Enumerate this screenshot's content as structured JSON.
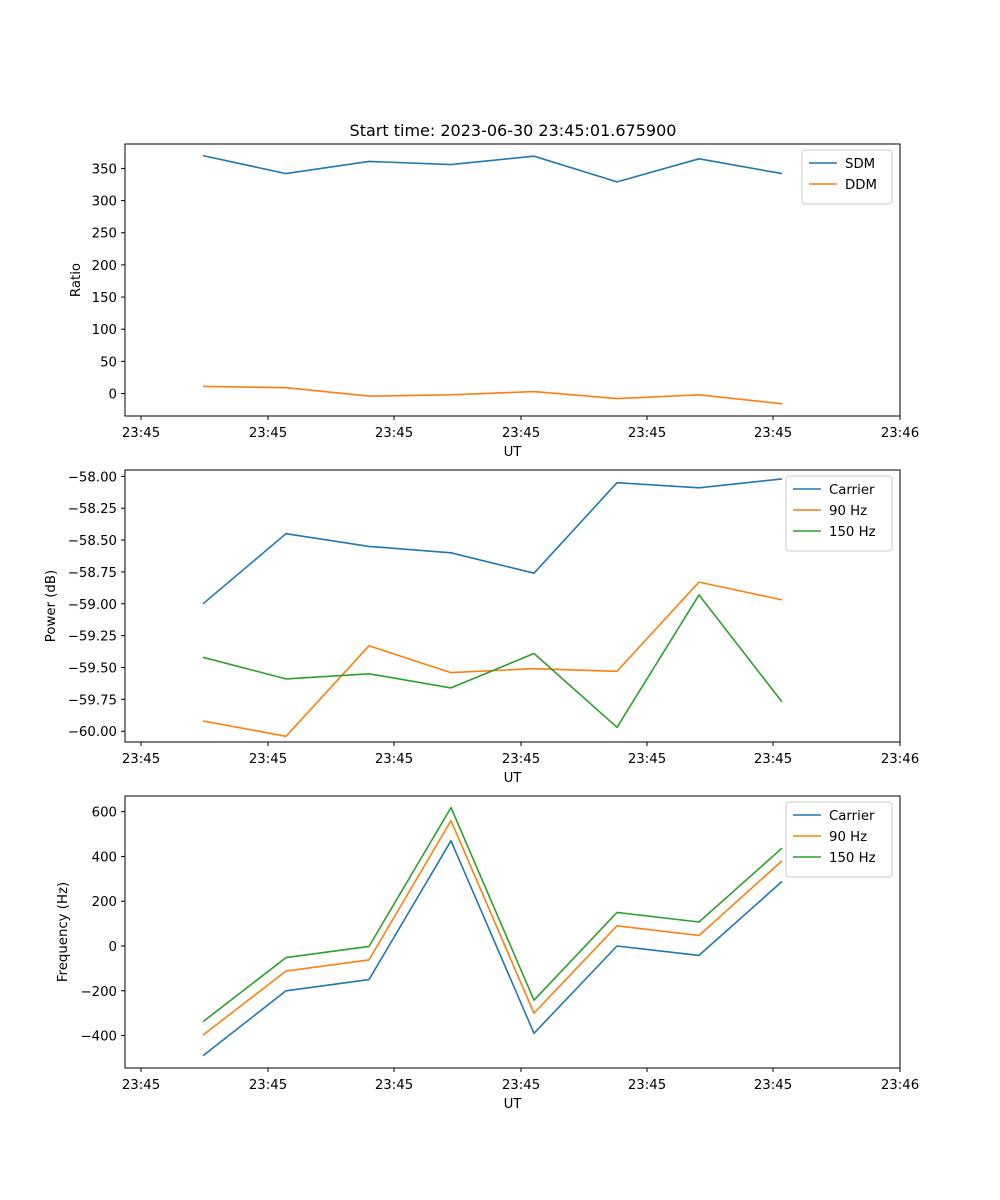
{
  "figure": {
    "title": "Start time: 2023-06-30 23:45:01.675900"
  },
  "chart_data": [
    {
      "type": "line",
      "title": "Start time: 2023-06-30 23:45:01.675900",
      "xlabel": "UT",
      "ylabel": "Ratio",
      "x_tick_labels": [
        "23:45",
        "23:45",
        "23:45",
        "23:45",
        "23:45",
        "23:45",
        "23:45"
      ],
      "x_last_tick_label": "23:46",
      "y_ticks": [
        0,
        50,
        100,
        150,
        200,
        250,
        300,
        350
      ],
      "ylim": [
        -35,
        388
      ],
      "legend_position": "top-right",
      "grid": false,
      "series": [
        {
          "name": "SDM",
          "color": "#1f77b4",
          "values": [
            370,
            342,
            361,
            356,
            369,
            329,
            365,
            342
          ]
        },
        {
          "name": "DDM",
          "color": "#ff7f0e",
          "values": [
            11,
            9,
            -4,
            -2,
            3,
            -8,
            -2,
            -16
          ]
        }
      ]
    },
    {
      "type": "line",
      "xlabel": "UT",
      "ylabel": "Power (dB)",
      "x_tick_labels": [
        "23:45",
        "23:45",
        "23:45",
        "23:45",
        "23:45",
        "23:45",
        "23:45"
      ],
      "x_last_tick_label": "23:46",
      "y_ticks": [
        -60.0,
        -59.75,
        -59.5,
        -59.25,
        -59.0,
        -58.75,
        -58.5,
        -58.25,
        -58.0
      ],
      "y_tick_labels": [
        "−60.00",
        "−59.75",
        "−59.50",
        "−59.25",
        "−59.00",
        "−58.75",
        "−58.50",
        "−58.25",
        "−58.00"
      ],
      "ylim": [
        -60.085,
        -57.95
      ],
      "legend_position": "top-right",
      "grid": false,
      "series": [
        {
          "name": "Carrier",
          "color": "#1f77b4",
          "values": [
            -59.0,
            -58.45,
            -58.55,
            -58.6,
            -58.76,
            -58.05,
            -58.09,
            -58.02
          ]
        },
        {
          "name": "90 Hz",
          "color": "#ff7f0e",
          "values": [
            -59.92,
            -60.04,
            -59.33,
            -59.54,
            -59.51,
            -59.53,
            -58.83,
            -58.97
          ]
        },
        {
          "name": "150 Hz",
          "color": "#2ca02c",
          "values": [
            -59.42,
            -59.59,
            -59.55,
            -59.66,
            -59.39,
            -59.97,
            -58.93,
            -59.77
          ]
        }
      ]
    },
    {
      "type": "line",
      "xlabel": "UT",
      "ylabel": "Frequency (Hz)",
      "x_tick_labels": [
        "23:45",
        "23:45",
        "23:45",
        "23:45",
        "23:45",
        "23:45",
        "23:45"
      ],
      "x_last_tick_label": "23:46",
      "y_ticks": [
        -400,
        -200,
        0,
        200,
        400,
        600
      ],
      "y_tick_labels": [
        "−400",
        "−200",
        "0",
        "200",
        "400",
        "600"
      ],
      "ylim": [
        -545,
        670
      ],
      "legend_position": "top-right",
      "grid": false,
      "series": [
        {
          "name": "Carrier",
          "color": "#1f77b4",
          "values": [
            -490,
            -200,
            -150,
            470,
            -390,
            0,
            -42,
            288
          ]
        },
        {
          "name": "90 Hz",
          "color": "#ff7f0e",
          "values": [
            -398,
            -112,
            -62,
            560,
            -300,
            90,
            47,
            380
          ]
        },
        {
          "name": "150 Hz",
          "color": "#2ca02c",
          "values": [
            -338,
            -52,
            -2,
            618,
            -242,
            150,
            107,
            437
          ]
        }
      ]
    }
  ]
}
